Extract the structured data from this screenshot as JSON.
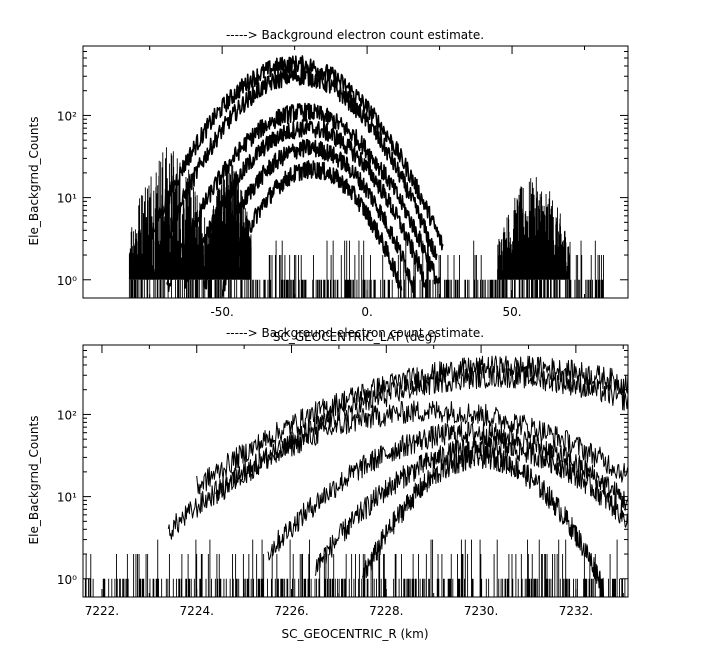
{
  "chart_data": [
    {
      "type": "line",
      "title": "-----> Background electron count estimate.",
      "xlabel": "SC_GEOCENTRIC_LAT (deg)",
      "ylabel": "Ele_Backgrnd_Counts",
      "xlim": [
        -98,
        90
      ],
      "ylim": [
        0.6,
        700
      ],
      "yscale": "log",
      "xticks": [
        -50,
        0,
        50
      ],
      "xtick_labels": [
        "-50.",
        "0.",
        "50."
      ],
      "yticks": [
        1,
        10,
        100
      ],
      "ytick_labels": [
        "10⁰",
        "10¹",
        "10²"
      ],
      "series": [
        {
          "peak_x": -25,
          "peak_y": 420,
          "width": 16
        },
        {
          "peak_x": -24,
          "peak_y": 300,
          "width": 15
        },
        {
          "peak_x": -22,
          "peak_y": 110,
          "width": 15
        },
        {
          "peak_x": -21,
          "peak_y": 70,
          "width": 14
        },
        {
          "peak_x": -20,
          "peak_y": 40,
          "width": 13
        },
        {
          "peak_x": -19,
          "peak_y": 22,
          "width": 12
        }
      ],
      "noise_regions": [
        {
          "x_range": [
            -82,
            -55
          ],
          "max": 45
        },
        {
          "x_range": [
            -55,
            -40
          ],
          "max": 30
        },
        {
          "x_range": [
            45,
            70
          ],
          "max": 18
        }
      ]
    },
    {
      "type": "line",
      "title": "-----> Background electron count estimate.",
      "xlabel": "SC_GEOCENTRIC_R (km)",
      "ylabel": "Ele_Backgrnd_Counts",
      "xlim": [
        7221.6,
        7233.1
      ],
      "ylim": [
        0.6,
        700
      ],
      "yscale": "log",
      "xticks": [
        7222,
        7224,
        7226,
        7228,
        7230,
        7232
      ],
      "xtick_labels": [
        "7222.",
        "7224.",
        "7226.",
        "7228.",
        "7230.",
        "7232."
      ],
      "yticks": [
        1,
        10,
        100
      ],
      "ytick_labels": [
        "10⁰",
        "10¹",
        "10²"
      ],
      "series": [
        {
          "peak_x": 7230.6,
          "peak_y": 380,
          "start": 7224.0
        },
        {
          "peak_x": 7230.4,
          "peak_y": 290,
          "start": 7224.4
        },
        {
          "peak_x": 7229.0,
          "peak_y": 110,
          "start": 7223.4
        },
        {
          "peak_x": 7229.8,
          "peak_y": 60,
          "start": 7225.5
        },
        {
          "peak_x": 7230.2,
          "peak_y": 40,
          "start": 7226.5
        },
        {
          "peak_x": 7230.0,
          "peak_y": 30,
          "start": 7227.5
        }
      ]
    }
  ]
}
